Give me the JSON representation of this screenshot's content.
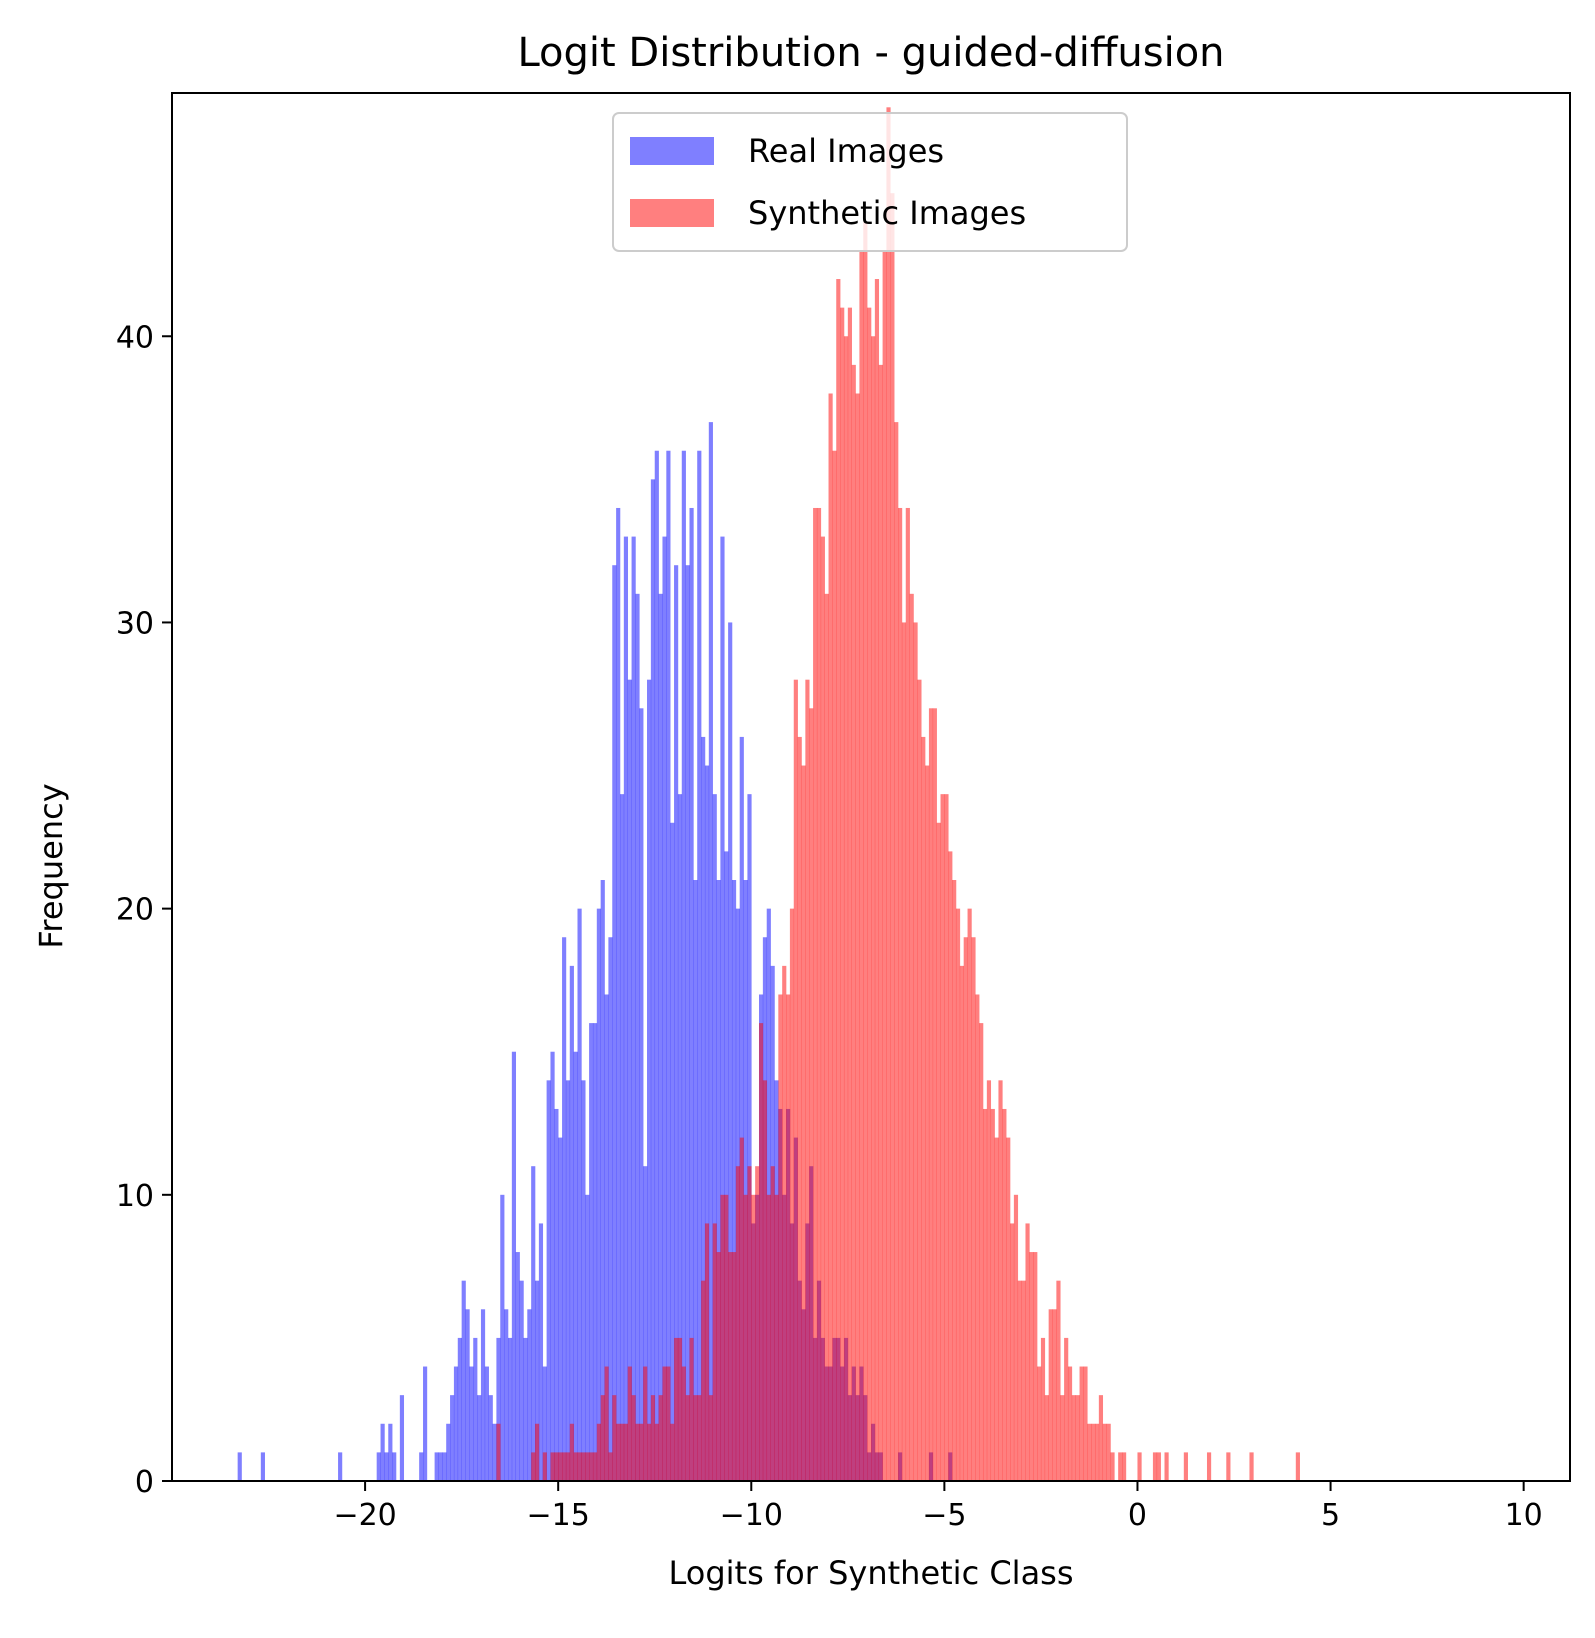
{
  "chart_data": {
    "type": "bar",
    "title": "Logit Distribution - guided-diffusion",
    "xlabel": "Logits for Synthetic Class",
    "ylabel": "Frequency",
    "xlim": [
      -25.0,
      11.2
    ],
    "ylim": [
      0,
      48.5
    ],
    "xticks": [
      -20,
      -15,
      -10,
      -5,
      0,
      5,
      10
    ],
    "xtick_labels": [
      "−20",
      "−15",
      "−10",
      "−5",
      "0",
      "5",
      "10"
    ],
    "yticks": [
      0,
      10,
      20,
      30,
      40
    ],
    "ytick_labels": [
      "0",
      "10",
      "20",
      "30",
      "40"
    ],
    "bin_width": 0.1,
    "grid": false,
    "legend_position": "upper-center",
    "series": [
      {
        "name": "Real Images",
        "color": "#0000ff",
        "alpha": 0.5,
        "x_start": -23.3,
        "values": [
          1,
          0,
          0,
          0,
          0,
          0,
          1,
          0,
          0,
          0,
          0,
          0,
          0,
          0,
          0,
          0,
          0,
          0,
          0,
          0,
          0,
          0,
          0,
          0,
          0,
          0,
          1,
          0,
          0,
          0,
          0,
          0,
          0,
          0,
          0,
          0,
          1,
          2,
          1,
          2,
          1,
          0,
          3,
          0,
          0,
          0,
          0,
          1,
          4,
          0,
          0,
          1,
          1,
          1,
          2,
          3,
          4,
          5,
          7,
          6,
          4,
          5,
          3,
          6,
          4,
          3,
          2,
          5,
          10,
          6,
          5,
          15,
          8,
          7,
          5,
          6,
          11,
          7,
          9,
          4,
          14,
          15,
          13,
          12,
          19,
          14,
          18,
          15,
          20,
          14,
          10,
          16,
          16,
          20,
          21,
          17,
          19,
          32,
          34,
          24,
          33,
          28,
          33,
          31,
          27,
          11,
          28,
          35,
          36,
          31,
          33,
          36,
          23,
          32,
          24,
          36,
          32,
          34,
          21,
          36,
          26,
          25,
          37,
          24,
          21,
          33,
          22,
          30,
          21,
          20,
          26,
          21,
          24,
          9,
          10,
          17,
          19,
          20,
          18,
          14,
          13,
          10,
          13,
          9,
          12,
          7,
          6,
          9,
          11,
          5,
          7,
          5,
          4,
          4,
          5,
          5,
          4,
          5,
          3,
          4,
          3,
          4,
          3,
          1,
          2,
          1,
          1,
          0,
          0,
          0,
          0,
          1,
          0,
          0,
          0,
          0,
          0,
          0,
          0,
          1,
          0,
          0,
          0,
          0,
          1
        ]
      },
      {
        "name": "Synthetic Images",
        "color": "#ff0000",
        "alpha": 0.5,
        "x_start": -16.6,
        "values": [
          2,
          0,
          0,
          0,
          0,
          0,
          0,
          0,
          0,
          1,
          2,
          0,
          1,
          0,
          1,
          1,
          1,
          1,
          1,
          2,
          1,
          1,
          1,
          1,
          1,
          1,
          2,
          3,
          4,
          1,
          3,
          2,
          2,
          2,
          4,
          3,
          2,
          2,
          4,
          2,
          3,
          2,
          3,
          4,
          4,
          2,
          5,
          5,
          4,
          3,
          5,
          3,
          3,
          7,
          9,
          3,
          9,
          8,
          10,
          10,
          8,
          8,
          11,
          12,
          10,
          11,
          10,
          11,
          16,
          14,
          10,
          11,
          10,
          17,
          18,
          17,
          20,
          28,
          26,
          25,
          28,
          27,
          34,
          34,
          33,
          31,
          38,
          36,
          42,
          41,
          40,
          41,
          39,
          38,
          43,
          44,
          41,
          40,
          42,
          39,
          43,
          48,
          45,
          37,
          34,
          30,
          34,
          31,
          30,
          28,
          26,
          25,
          27,
          27,
          23,
          24,
          24,
          22,
          21,
          20,
          18,
          19,
          20,
          19,
          17,
          16,
          13,
          14,
          13,
          12,
          14,
          13,
          12,
          9,
          10,
          7,
          7,
          9,
          8,
          8,
          4,
          5,
          3,
          6,
          6,
          7,
          3,
          5,
          4,
          3,
          3,
          4,
          4,
          2,
          2,
          2,
          3,
          2,
          2,
          1,
          0,
          1,
          1,
          0,
          0,
          0,
          1,
          0,
          0,
          0,
          1,
          1,
          0,
          1,
          0,
          0,
          0,
          0,
          1,
          0,
          0,
          0,
          0,
          0,
          1,
          0,
          0,
          0,
          0,
          1,
          0,
          0,
          0,
          0,
          0,
          1,
          0,
          0,
          0,
          0,
          0,
          0,
          0,
          0,
          0,
          0,
          0,
          1
        ]
      }
    ]
  }
}
